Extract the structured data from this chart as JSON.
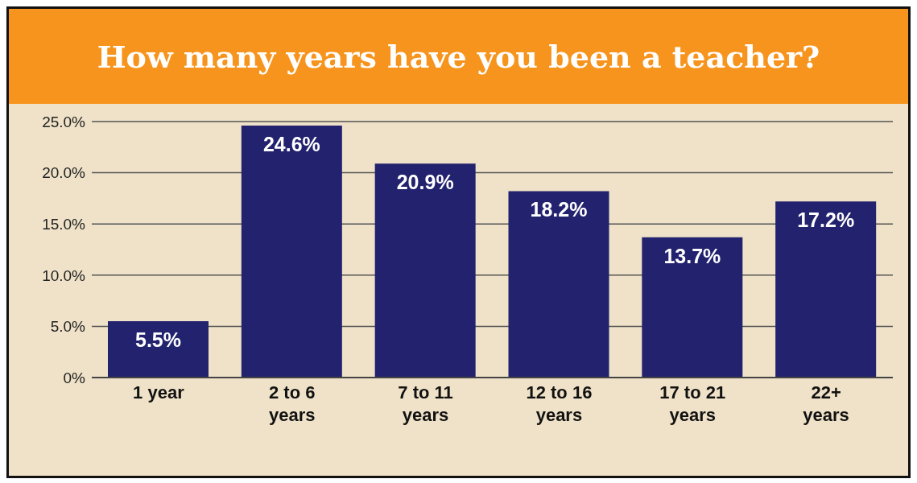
{
  "chart_data": {
    "type": "bar",
    "title": "How many years have you been a teacher?",
    "categories": [
      "1 year",
      "2 to 6 years",
      "7 to 11 years",
      "12 to 16 years",
      "17 to 21 years",
      "22+ years"
    ],
    "values": [
      5.5,
      24.6,
      20.9,
      18.2,
      13.7,
      17.2
    ],
    "value_labels": [
      "5.5%",
      "24.6%",
      "20.9%",
      "18.2%",
      "13.7%",
      "17.2%"
    ],
    "color": "#22226e",
    "ylim": [
      0,
      25
    ],
    "yticks": [
      {
        "value": 0,
        "label": "0%"
      },
      {
        "value": 5,
        "label": "5.0%"
      },
      {
        "value": 10,
        "label": "10.0%"
      },
      {
        "value": 15,
        "label": "15.0%"
      },
      {
        "value": 20,
        "label": "20.0%"
      },
      {
        "value": 25,
        "label": "25.0%"
      }
    ],
    "grid": "y"
  }
}
